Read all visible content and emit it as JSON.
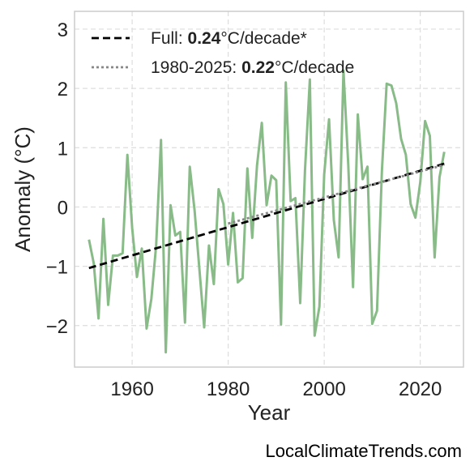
{
  "chart_data": {
    "type": "line",
    "xlabel": "Year",
    "ylabel": "Anomaly (°C)",
    "xlim": [
      1948,
      2029
    ],
    "ylim": [
      -2.7,
      3.3
    ],
    "xticks": [
      1960,
      1980,
      2000,
      2020
    ],
    "yticks": [
      -2,
      -1,
      0,
      1,
      2,
      3
    ],
    "ytick_labels": [
      "−2",
      "−1",
      "0",
      "1",
      "2",
      "3"
    ],
    "grid": true,
    "legend_position": "top-left",
    "series": [
      {
        "color": "#88bb88",
        "x": [
          1951,
          1952,
          1953,
          1954,
          1955,
          1956,
          1957,
          1958,
          1959,
          1960,
          1961,
          1962,
          1963,
          1964,
          1965,
          1966,
          1967,
          1968,
          1969,
          1970,
          1971,
          1972,
          1973,
          1974,
          1975,
          1976,
          1977,
          1978,
          1979,
          1980,
          1981,
          1982,
          1983,
          1984,
          1985,
          1986,
          1987,
          1988,
          1989,
          1990,
          1991,
          1992,
          1993,
          1994,
          1995,
          1996,
          1997,
          1998,
          1999,
          2000,
          2001,
          2002,
          2003,
          2004,
          2005,
          2006,
          2007,
          2008,
          2009,
          2010,
          2011,
          2012,
          2013,
          2014,
          2015,
          2016,
          2017,
          2018,
          2019,
          2020,
          2021,
          2022,
          2023,
          2024,
          2025
        ],
        "values": [
          -0.55,
          -0.95,
          -1.88,
          -0.2,
          -1.65,
          -0.82,
          -0.82,
          -0.78,
          0.88,
          -0.35,
          -1.18,
          -0.7,
          -2.05,
          -1.55,
          -0.65,
          1.13,
          -2.45,
          0.03,
          -0.48,
          -0.42,
          -1.95,
          0.68,
          -0.05,
          -1.05,
          -2.03,
          -0.65,
          -1.3,
          0.3,
          0.05,
          -0.97,
          -0.1,
          -1.27,
          -1.2,
          0.65,
          -0.52,
          0.7,
          1.42,
          0.03,
          0.53,
          0.45,
          -1.98,
          2.1,
          0.1,
          0.15,
          -1.62,
          0.62,
          2.15,
          -2.17,
          -1.68,
          0.55,
          1.48,
          -0.22,
          -0.85,
          2.3,
          0.72,
          -1.35,
          1.56,
          0.47,
          0.68,
          -1.97,
          -1.75,
          0.6,
          2.08,
          2.05,
          1.75,
          1.15,
          0.88,
          0.05,
          -0.18,
          0.42,
          1.45,
          1.2,
          -0.85,
          0.5,
          0.93
        ]
      },
      {
        "color": "#000000",
        "line_style": "dashed",
        "x": [
          1951,
          2025
        ],
        "values": [
          -1.03,
          0.73
        ]
      },
      {
        "color": "#888888",
        "line_style": "dotted",
        "x": [
          1980,
          2025
        ],
        "values": [
          -0.28,
          0.71
        ]
      }
    ],
    "legend": [
      {
        "prefix": "Full: ",
        "bold": "0.24",
        "suffix": "°C/decade*"
      },
      {
        "prefix": "1980-2025: ",
        "bold": "0.22",
        "suffix": "°C/decade"
      }
    ]
  },
  "footer": "LocalClimateTrends.com"
}
